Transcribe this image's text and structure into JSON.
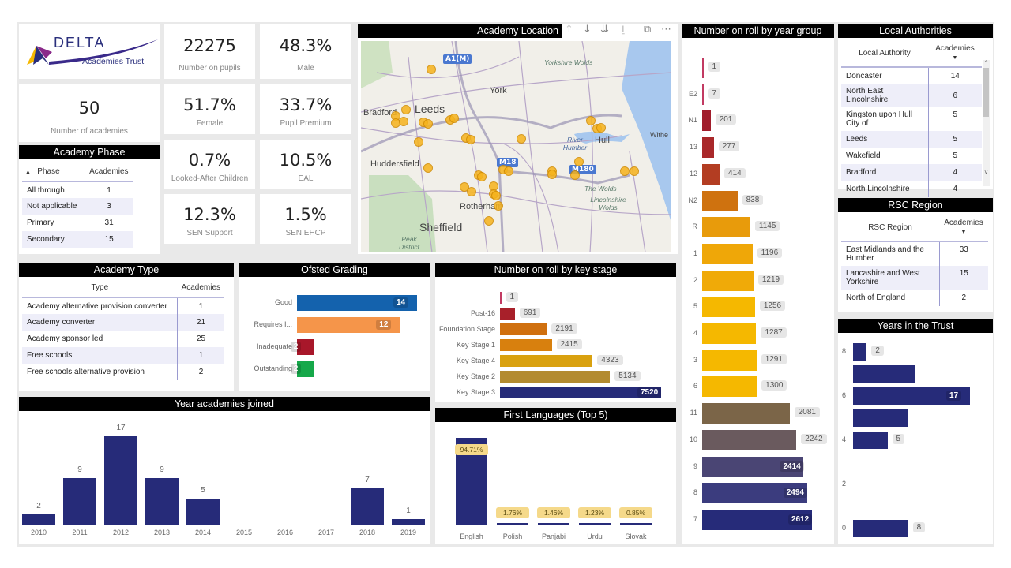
{
  "logo": {
    "name": "DELTA",
    "subtitle": "Academies Trust"
  },
  "kpis": [
    {
      "value": "22275",
      "label": "Number on pupils"
    },
    {
      "value": "48.3%",
      "label": "Male"
    },
    {
      "value": "51.7%",
      "label": "Female"
    },
    {
      "value": "33.7%",
      "label": "Pupil Premium"
    },
    {
      "value": "0.7%",
      "label": "Looked-After Children"
    },
    {
      "value": "10.5%",
      "label": "EAL"
    },
    {
      "value": "12.3%",
      "label": "SEN Support"
    },
    {
      "value": "1.5%",
      "label": "SEN EHCP"
    }
  ],
  "academies": {
    "value": "50",
    "label": "Number of academies"
  },
  "phase": {
    "title": "Academy Phase",
    "headers": [
      "Phase",
      "Academies"
    ],
    "rows": [
      [
        "All through",
        "1"
      ],
      [
        "Not applicable",
        "3"
      ],
      [
        "Primary",
        "31"
      ],
      [
        "Secondary",
        "15"
      ]
    ]
  },
  "map": {
    "title": "Academy Location",
    "labels": [
      "Yorkshire Wolds",
      "York",
      "Bradford",
      "Leeds",
      "Hull",
      "River Humber",
      "Withe",
      "Huddersfield",
      "The Wolds",
      "Lincolnshire Wolds",
      "Rotherham",
      "Sheffield",
      "Peak District"
    ],
    "roads": [
      "A1(M)",
      "M18",
      "M180"
    ]
  },
  "type": {
    "title": "Academy Type",
    "headers": [
      "Type",
      "Academies"
    ],
    "rows": [
      [
        "Academy alternative provision converter",
        "1"
      ],
      [
        "Academy converter",
        "21"
      ],
      [
        "Academy sponsor led",
        "25"
      ],
      [
        "Free schools",
        "1"
      ],
      [
        "Free schools alternative provision",
        "2"
      ]
    ]
  },
  "local_authorities": {
    "title": "Local Authorities",
    "headers": [
      "Local Authority",
      "Academies"
    ],
    "rows": [
      [
        "Doncaster",
        "14"
      ],
      [
        "North East Lincolnshire",
        "6"
      ],
      [
        "Kingston upon Hull City of",
        "5"
      ],
      [
        "Leeds",
        "5"
      ],
      [
        "Wakefield",
        "5"
      ],
      [
        "Bradford",
        "4"
      ],
      [
        "North Lincolnshire",
        "4"
      ]
    ]
  },
  "rsc": {
    "title": "RSC Region",
    "headers": [
      "RSC Region",
      "Academies"
    ],
    "rows": [
      [
        "East Midlands and the Humber",
        "33"
      ],
      [
        "Lancashire and West Yorkshire",
        "15"
      ],
      [
        "North of England",
        "2"
      ]
    ]
  },
  "chart_data": [
    {
      "id": "year_group",
      "type": "bar",
      "orientation": "horizontal",
      "title": "Number on roll by year group",
      "categories": [
        "",
        "E2",
        "N1",
        "13",
        "12",
        "N2",
        "R",
        "1",
        "2",
        "5",
        "4",
        "3",
        "6",
        "11",
        "10",
        "9",
        "8",
        "7"
      ],
      "values": [
        1,
        7,
        201,
        277,
        414,
        838,
        1145,
        1196,
        1219,
        1256,
        1287,
        1291,
        1300,
        2081,
        2242,
        2414,
        2494,
        2612
      ],
      "colors": [
        "#c23a62",
        "#c23a62",
        "#a11d2b",
        "#a9282a",
        "#b33d22",
        "#cf720f",
        "#e89b0b",
        "#efa708",
        "#f0aa08",
        "#f5b800",
        "#f5b800",
        "#f5b800",
        "#f5b800",
        "#7b6548",
        "#6a5a5e",
        "#4a4574",
        "#3b3c7e",
        "#262b79"
      ]
    },
    {
      "id": "ofsted",
      "type": "bar",
      "orientation": "horizontal",
      "title": "Ofsted Grading",
      "categories": [
        "Good",
        "Requires I...",
        "Inadequate",
        "Outstanding"
      ],
      "values": [
        14,
        12,
        2,
        2
      ],
      "colors": [
        "#1462ad",
        "#f5954a",
        "#a8172a",
        "#16a84a"
      ]
    },
    {
      "id": "key_stage",
      "type": "bar",
      "orientation": "horizontal",
      "title": "Number on roll by key stage",
      "categories": [
        "",
        "Post-16",
        "Foundation Stage",
        "Key Stage 1",
        "Key Stage 4",
        "Key Stage 2",
        "Key Stage 3"
      ],
      "values": [
        1,
        691,
        2191,
        2415,
        4323,
        5134,
        7520
      ],
      "colors": [
        "#c23a62",
        "#a8202a",
        "#d0700f",
        "#d8800e",
        "#d9a10f",
        "#b38b30",
        "#262b79"
      ]
    },
    {
      "id": "year_joined",
      "type": "bar",
      "title": "Year academies joined",
      "categories": [
        "2010",
        "2011",
        "2012",
        "2013",
        "2014",
        "2015",
        "2016",
        "2017",
        "2018",
        "2019"
      ],
      "values": [
        2,
        9,
        17,
        9,
        5,
        0,
        0,
        0,
        7,
        1
      ],
      "color": "#262b79"
    },
    {
      "id": "languages",
      "type": "bar",
      "title": "First Languages (Top 5)",
      "categories": [
        "English",
        "Polish",
        "Panjabi",
        "Urdu",
        "Slovak"
      ],
      "values": [
        94.71,
        1.76,
        1.46,
        1.23,
        0.85
      ],
      "labels": [
        "94.71%",
        "1.76%",
        "1.46%",
        "1.23%",
        "0.85%"
      ],
      "color": "#262b79"
    },
    {
      "id": "years_trust",
      "type": "bar",
      "orientation": "horizontal",
      "title": "Years in the Trust",
      "categories": [
        "8",
        "7",
        "6",
        "5",
        "4",
        "3",
        "2",
        "1",
        "0"
      ],
      "values": [
        2,
        9,
        17,
        8,
        5,
        0,
        0,
        0,
        8
      ],
      "shown_labels": [
        true,
        false,
        true,
        false,
        true,
        false,
        false,
        false,
        true
      ],
      "tick_labels": [
        "8",
        "6",
        "4",
        "2",
        "0"
      ],
      "color": "#262b79"
    }
  ]
}
